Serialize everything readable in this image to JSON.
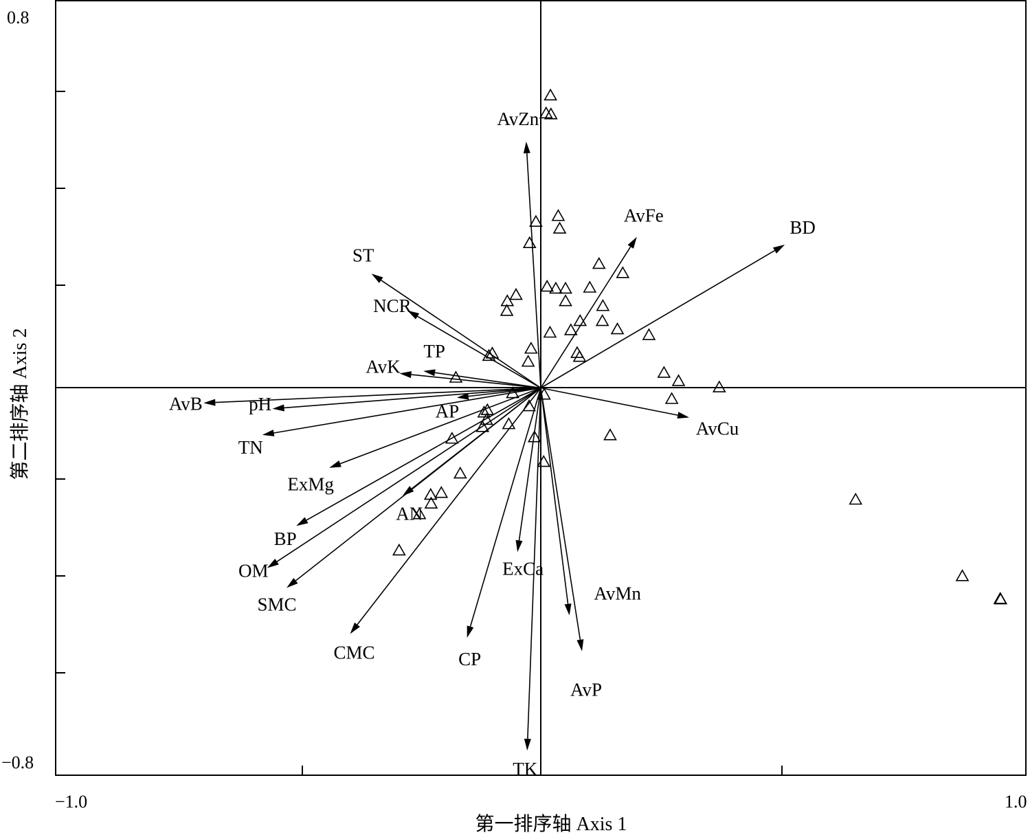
{
  "chart_data": {
    "type": "scatter",
    "xlabel": "第一排序轴 Axis 1",
    "ylabel": "第二排序轴 Axis 2",
    "xlim": [
      -1.0,
      1.0
    ],
    "ylim": [
      -0.8,
      0.8
    ],
    "x_tick_labels": [
      "−1.0",
      "1.0"
    ],
    "y_tick_labels": [
      "0.8",
      "−0.8"
    ],
    "grid": false,
    "colors": {
      "axes": "#000000",
      "arrows": "#000000",
      "markers": "#000000"
    },
    "marker_shape": "open-triangle",
    "vectors": [
      {
        "name": "AvZn",
        "x": -0.03,
        "y": 0.509
      },
      {
        "name": "AvFe",
        "x": 0.198,
        "y": 0.312
      },
      {
        "name": "BD",
        "x": 0.503,
        "y": 0.296
      },
      {
        "name": "ST",
        "x": -0.349,
        "y": 0.236
      },
      {
        "name": "NCR",
        "x": -0.275,
        "y": 0.16
      },
      {
        "name": "TP",
        "x": -0.242,
        "y": 0.035
      },
      {
        "name": "AvK",
        "x": -0.291,
        "y": 0.03
      },
      {
        "name": "pH",
        "x": -0.553,
        "y": -0.043
      },
      {
        "name": "AvB",
        "x": -0.695,
        "y": -0.031
      },
      {
        "name": "AP",
        "x": -0.173,
        "y": -0.02
      },
      {
        "name": "AvCu",
        "x": 0.306,
        "y": -0.061
      },
      {
        "name": "TN",
        "x": -0.574,
        "y": -0.097
      },
      {
        "name": "ExMg",
        "x": -0.436,
        "y": -0.165
      },
      {
        "name": "AN",
        "x": -0.285,
        "y": -0.223
      },
      {
        "name": "BP",
        "x": -0.504,
        "y": -0.285
      },
      {
        "name": "OM",
        "x": -0.564,
        "y": -0.372
      },
      {
        "name": "SMC",
        "x": -0.524,
        "y": -0.413
      },
      {
        "name": "CMC",
        "x": -0.393,
        "y": -0.508
      },
      {
        "name": "CP",
        "x": -0.152,
        "y": -0.516
      },
      {
        "name": "ExCa",
        "x": -0.048,
        "y": -0.339
      },
      {
        "name": "AvMn",
        "x": 0.059,
        "y": -0.47
      },
      {
        "name": "AvP",
        "x": 0.085,
        "y": -0.544
      },
      {
        "name": "TK",
        "x": -0.028,
        "y": -0.749
      }
    ],
    "samples": [
      {
        "x": 0.02,
        "y": 0.605
      },
      {
        "x": 0.011,
        "y": 0.568
      },
      {
        "x": 0.021,
        "y": 0.566
      },
      {
        "x": -0.01,
        "y": 0.344
      },
      {
        "x": 0.036,
        "y": 0.356
      },
      {
        "x": 0.039,
        "y": 0.33
      },
      {
        "x": -0.023,
        "y": 0.3
      },
      {
        "x": 0.12,
        "y": 0.257
      },
      {
        "x": 0.169,
        "y": 0.238
      },
      {
        "x": 0.101,
        "y": 0.208
      },
      {
        "x": 0.013,
        "y": 0.21
      },
      {
        "x": 0.031,
        "y": 0.206
      },
      {
        "x": 0.051,
        "y": 0.206
      },
      {
        "x": 0.051,
        "y": 0.18
      },
      {
        "x": -0.051,
        "y": 0.193
      },
      {
        "x": -0.069,
        "y": 0.18
      },
      {
        "x": -0.07,
        "y": 0.16
      },
      {
        "x": 0.128,
        "y": 0.17
      },
      {
        "x": 0.127,
        "y": 0.139
      },
      {
        "x": 0.081,
        "y": 0.139
      },
      {
        "x": 0.158,
        "y": 0.122
      },
      {
        "x": 0.062,
        "y": 0.12
      },
      {
        "x": 0.019,
        "y": 0.115
      },
      {
        "x": 0.223,
        "y": 0.11
      },
      {
        "x": -0.02,
        "y": 0.082
      },
      {
        "x": -0.1,
        "y": 0.072
      },
      {
        "x": -0.107,
        "y": 0.067
      },
      {
        "x": 0.075,
        "y": 0.073
      },
      {
        "x": 0.08,
        "y": 0.065
      },
      {
        "x": -0.026,
        "y": 0.055
      },
      {
        "x": 0.254,
        "y": 0.032
      },
      {
        "x": 0.284,
        "y": 0.015
      },
      {
        "x": 0.368,
        "y": 0.002
      },
      {
        "x": -0.175,
        "y": 0.022
      },
      {
        "x": -0.058,
        "y": -0.01
      },
      {
        "x": 0.007,
        "y": -0.013
      },
      {
        "x": 0.27,
        "y": -0.022
      },
      {
        "x": -0.024,
        "y": -0.037
      },
      {
        "x": -0.11,
        "y": -0.045
      },
      {
        "x": -0.117,
        "y": -0.05
      },
      {
        "x": -0.112,
        "y": -0.065
      },
      {
        "x": -0.066,
        "y": -0.074
      },
      {
        "x": -0.12,
        "y": -0.08
      },
      {
        "x": -0.183,
        "y": -0.104
      },
      {
        "x": -0.013,
        "y": -0.101
      },
      {
        "x": 0.143,
        "y": -0.097
      },
      {
        "x": 0.006,
        "y": -0.152
      },
      {
        "x": -0.166,
        "y": -0.176
      },
      {
        "x": -0.205,
        "y": -0.216
      },
      {
        "x": -0.227,
        "y": -0.22
      },
      {
        "x": -0.226,
        "y": -0.238
      },
      {
        "x": -0.25,
        "y": -0.26
      },
      {
        "x": -0.292,
        "y": -0.335
      },
      {
        "x": 0.649,
        "y": -0.23
      },
      {
        "x": 0.869,
        "y": -0.388
      },
      {
        "x": 0.947,
        "y": -0.435
      },
      {
        "x": 0.948,
        "y": -0.436
      }
    ]
  }
}
